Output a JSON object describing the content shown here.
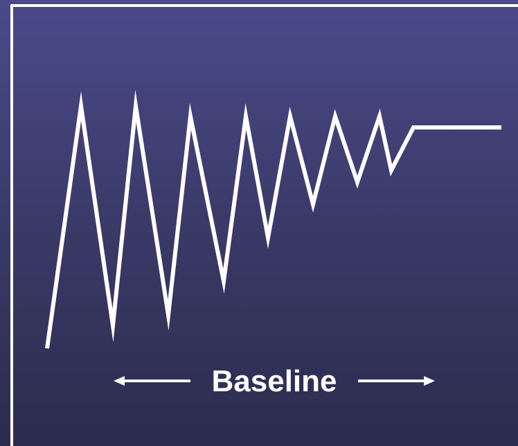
{
  "colors": {
    "background_top": "#4a4a8a",
    "background_bottom": "#2c2c4e",
    "stroke": "#ffffff"
  },
  "labels": {
    "baseline": "Baseline"
  }
}
